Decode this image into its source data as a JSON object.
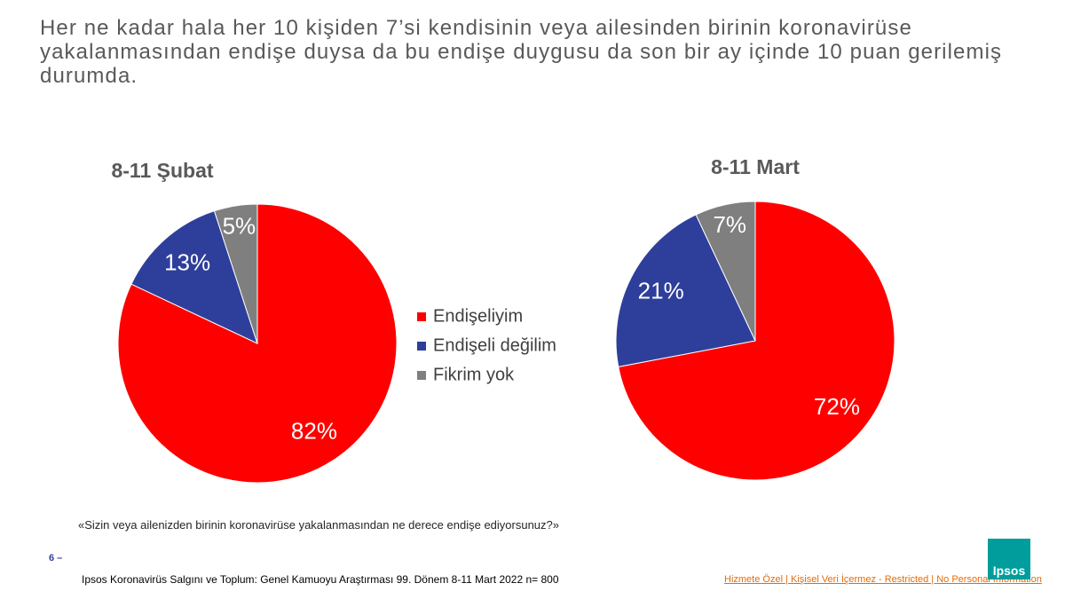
{
  "title": "Her ne kadar hala her 10 kişiden 7’si kendisinin veya ailesinden birinin koronavirüse yakalanmasından endişe duysa da bu endişe duygusu da son bir ay içinde 10 puan gerilemiş durumda.",
  "chart_data": [
    {
      "type": "pie",
      "title": "8-11 Şubat",
      "categories": [
        "Endişeliyim",
        "Endişeli değilim",
        "Fikrim yok"
      ],
      "values": [
        82,
        13,
        5
      ],
      "value_labels": [
        "82%",
        "13%",
        "5%"
      ],
      "colors": [
        "#ff0000",
        "#2e3f9b",
        "#7f7f7f"
      ]
    },
    {
      "type": "pie",
      "title": "8-11 Mart",
      "values": [
        72,
        21,
        7
      ],
      "value_labels": [
        "72%",
        "21%",
        "7%"
      ],
      "colors": [
        "#ff0000",
        "#2e3f9b",
        "#7f7f7f"
      ]
    }
  ],
  "question": "«Sizin veya ailenizden birinin koronavirüse yakalanmasından ne derece endişe ediyorsunuz?»",
  "page_number": "6 –",
  "footer": "Ipsos Koronavirüs  Salgını ve Toplum: Genel Kamuoyu Araştırması 99. Dönem  8-11 Mart 2022 n= 800",
  "classification": "Hizmete Özel | Kişisel Veri İçermez - Restricted | No Personal Information",
  "logo": "Ipsos"
}
